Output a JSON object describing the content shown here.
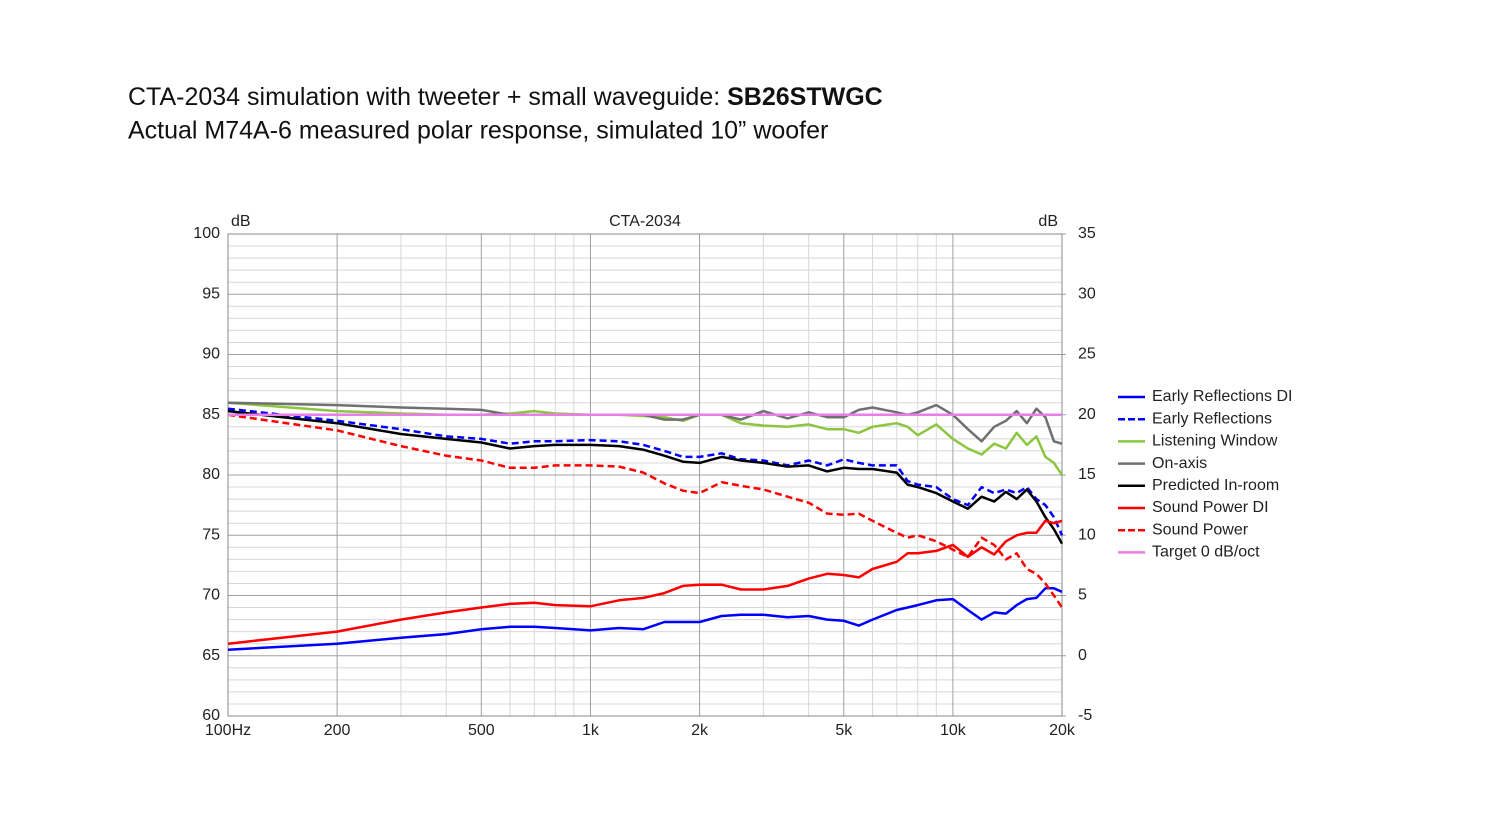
{
  "chart_data": {
    "type": "line",
    "title": "CTA-2034 simulation with tweeter + small waveguide:",
    "title_bold": "SB26STWGC",
    "subtitle": "Actual M74A-6 measured polar response, simulated 10” woofer",
    "chart_title": "CTA-2034",
    "ylabel": "dB",
    "y2label": "dB",
    "xscale": "log",
    "grid": true,
    "legend": "right",
    "xlim": [
      100,
      20000
    ],
    "xticks": [
      {
        "value": 100,
        "label": "100Hz"
      },
      200,
      500,
      {
        "value": 1000,
        "label": "1k"
      },
      {
        "value": 2000,
        "label": "2k"
      },
      {
        "value": 5000,
        "label": "5k"
      },
      {
        "value": 10000,
        "label": "10k"
      },
      {
        "value": 20000,
        "label": "20k"
      }
    ],
    "xminorticks": [
      300,
      400,
      600,
      700,
      800,
      900,
      3000,
      4000,
      6000,
      7000,
      8000,
      9000
    ],
    "ylim": [
      60,
      100
    ],
    "yticks": [
      60,
      65,
      70,
      75,
      80,
      85,
      90,
      95,
      100
    ],
    "yminorticks": [
      61,
      62,
      63,
      64,
      66,
      67,
      68,
      69,
      71,
      72,
      73,
      74,
      76,
      77,
      78,
      79,
      81,
      82,
      83,
      84,
      86,
      87,
      88,
      89,
      91,
      92,
      93,
      94,
      96,
      97,
      98,
      99
    ],
    "y2lim": [
      -5,
      35
    ],
    "y2ticks": [
      -5,
      0,
      5,
      10,
      15,
      20,
      25,
      30,
      35
    ],
    "x": [
      100,
      200,
      300,
      400,
      500,
      600,
      700,
      800,
      1000,
      1200,
      1400,
      1600,
      1800,
      2000,
      2300,
      2600,
      3000,
      3500,
      4000,
      4500,
      5000,
      5500,
      6000,
      7000,
      7500,
      8000,
      9000,
      10000,
      11000,
      12000,
      13000,
      14000,
      15000,
      16000,
      17000,
      18000,
      19000,
      20000
    ],
    "series": [
      {
        "name": "Early Reflections DI",
        "color": "#0000ff",
        "dash": false,
        "axis": "y2",
        "values": [
          0.5,
          1,
          1.5,
          1.8,
          2.2,
          2.4,
          2.4,
          2.3,
          2.1,
          2.3,
          2.2,
          2.8,
          2.8,
          2.8,
          3.3,
          3.4,
          3.4,
          3.2,
          3.3,
          3,
          2.9,
          2.5,
          3,
          3.8,
          4,
          4.2,
          4.6,
          4.7,
          3.8,
          3,
          3.6,
          3.5,
          4.2,
          4.7,
          4.8,
          5.6,
          5.6,
          5.3
        ]
      },
      {
        "name": "Early Reflections",
        "color": "#0000ff",
        "dash": true,
        "values": [
          85.5,
          84.5,
          83.8,
          83.2,
          83,
          82.6,
          82.8,
          82.8,
          82.9,
          82.8,
          82.5,
          82,
          81.5,
          81.5,
          81.8,
          81.3,
          81.2,
          80.8,
          81.2,
          80.8,
          81.3,
          81,
          80.8,
          80.8,
          79.5,
          79.2,
          79,
          78,
          77.5,
          79,
          78.5,
          78.8,
          78.5,
          79,
          78,
          77.5,
          76.5,
          75
        ]
      },
      {
        "name": "Listening Window",
        "color": "#8cc63f",
        "dash": false,
        "values": [
          86,
          85.3,
          85.1,
          85,
          85,
          85.1,
          85.3,
          85.1,
          85,
          85,
          84.9,
          84.8,
          84.5,
          85,
          85,
          84.3,
          84.1,
          84,
          84.2,
          83.8,
          83.8,
          83.5,
          84,
          84.3,
          84,
          83.3,
          84.2,
          83,
          82.2,
          81.7,
          82.6,
          82.2,
          83.5,
          82.5,
          83.2,
          81.5,
          81,
          80
        ]
      },
      {
        "name": "On-axis",
        "color": "#707070",
        "dash": false,
        "values": [
          86,
          85.8,
          85.6,
          85.5,
          85.4,
          85,
          85,
          85,
          85,
          85,
          85,
          84.6,
          84.6,
          85,
          85,
          84.6,
          85.3,
          84.7,
          85.2,
          84.8,
          84.8,
          85.4,
          85.6,
          85.2,
          85,
          85.2,
          85.8,
          85,
          83.8,
          82.8,
          84,
          84.5,
          85.3,
          84.3,
          85.5,
          84.8,
          82.8,
          82.6
        ]
      },
      {
        "name": "Predicted In-room",
        "color": "#000000",
        "dash": false,
        "values": [
          85.3,
          84.3,
          83.4,
          83,
          82.7,
          82.2,
          82.4,
          82.5,
          82.5,
          82.4,
          82.1,
          81.6,
          81.1,
          81,
          81.5,
          81.2,
          81,
          80.7,
          80.8,
          80.3,
          80.6,
          80.5,
          80.5,
          80.2,
          79.2,
          79,
          78.5,
          77.8,
          77.2,
          78.2,
          77.8,
          78.6,
          78,
          78.8,
          77.8,
          76.5,
          75.5,
          74.3
        ]
      },
      {
        "name": "Sound Power DI",
        "color": "#ff0000",
        "dash": false,
        "axis": "y2",
        "values": [
          1,
          2,
          3,
          3.6,
          4,
          4.3,
          4.4,
          4.2,
          4.1,
          4.6,
          4.8,
          5.2,
          5.8,
          5.9,
          5.9,
          5.5,
          5.5,
          5.8,
          6.4,
          6.8,
          6.7,
          6.5,
          7.2,
          7.8,
          8.5,
          8.5,
          8.7,
          9.2,
          8.2,
          9,
          8.4,
          9.5,
          10,
          10.2,
          10.2,
          11.2,
          11,
          11.2
        ]
      },
      {
        "name": "Sound Power",
        "color": "#ff0000",
        "dash": true,
        "values": [
          85,
          83.7,
          82.4,
          81.6,
          81.2,
          80.6,
          80.6,
          80.8,
          80.8,
          80.7,
          80.2,
          79.3,
          78.7,
          78.5,
          79.4,
          79.1,
          78.8,
          78.2,
          77.7,
          76.8,
          76.7,
          76.8,
          76.2,
          75.2,
          74.8,
          75,
          74.5,
          73.8,
          73.2,
          74.8,
          74.2,
          73,
          73.5,
          72.2,
          71.8,
          71,
          70,
          69
        ]
      },
      {
        "name": "Target 0 dB/oct",
        "color": "#e87ee8",
        "dash": false,
        "x": [
          100,
          20000
        ],
        "values": [
          85,
          85
        ]
      }
    ]
  }
}
